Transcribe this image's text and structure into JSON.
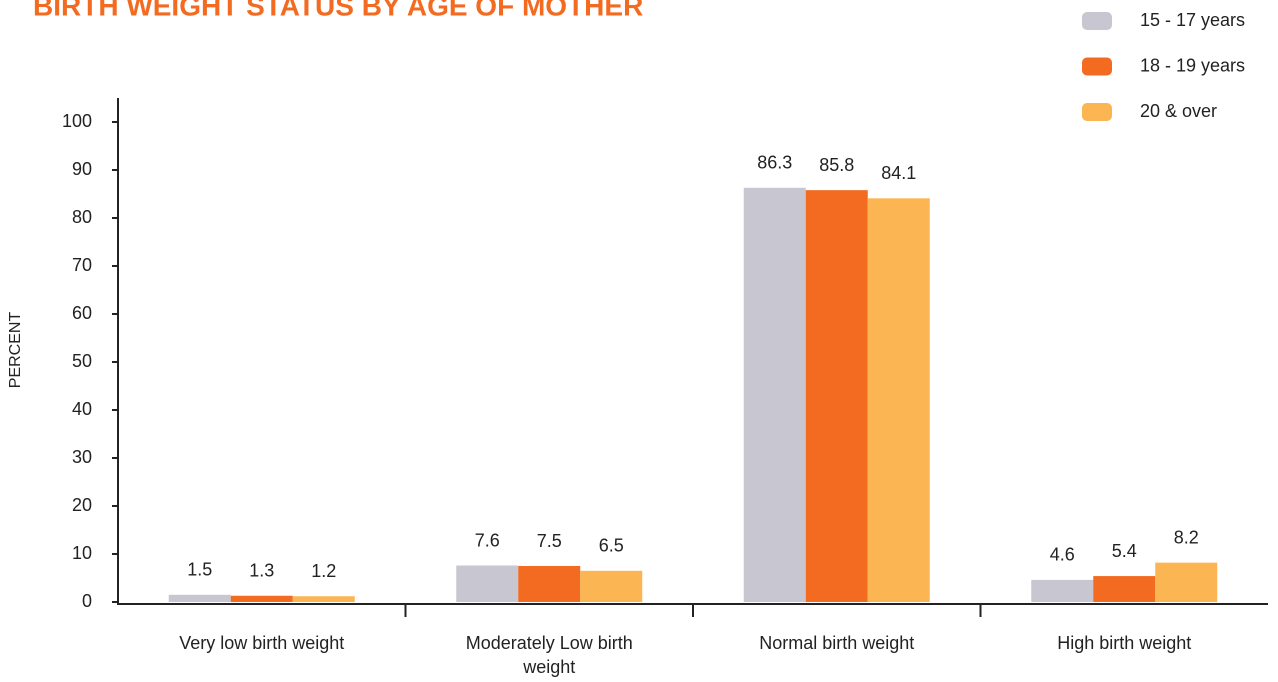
{
  "chart_data": {
    "type": "bar",
    "title": "BIRTH WEIGHT STATUS BY AGE OF MOTHER",
    "y_label": "PERCENT",
    "categories": [
      "Very low birth weight",
      "Moderately Low birth weight",
      "Normal birth weight",
      "High birth weight"
    ],
    "series": [
      {
        "name": "15 - 17 years",
        "color": "#c8c6d0",
        "values": [
          1.5,
          7.6,
          86.3,
          4.6
        ]
      },
      {
        "name": "18 - 19 years",
        "color": "#f26b21",
        "values": [
          1.3,
          7.5,
          85.8,
          5.4
        ]
      },
      {
        "name": "20 & over",
        "color": "#fbb552",
        "values": [
          1.2,
          6.5,
          84.1,
          8.2
        ]
      }
    ],
    "ylim": [
      0,
      105
    ],
    "yticks": [
      0,
      10,
      20,
      30,
      40,
      50,
      60,
      70,
      80,
      90,
      100
    ],
    "legend": "top-right"
  }
}
